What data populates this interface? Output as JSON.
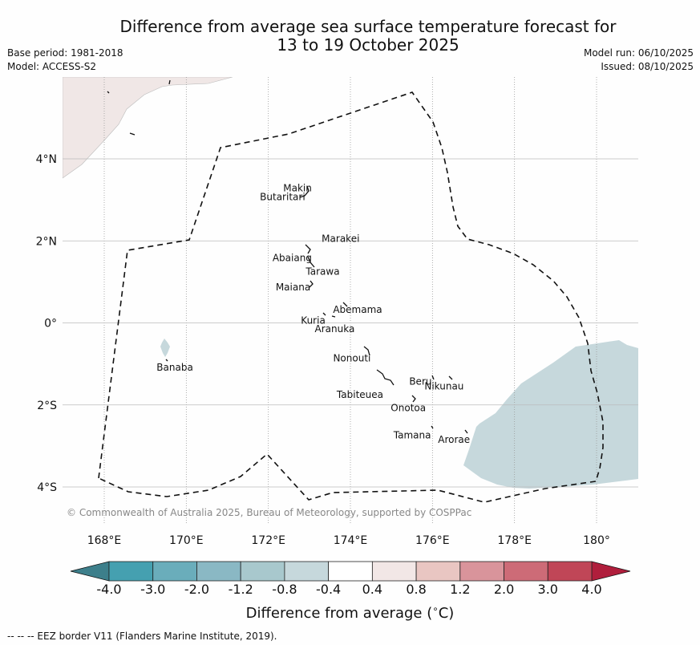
{
  "title": {
    "line1": "Difference from average sea surface temperature forecast for",
    "line2": "13 to 19 October 2025"
  },
  "meta_left": {
    "base_period": "Base period: 1981-2018",
    "model": "Model: ACCESS-S2"
  },
  "meta_right": {
    "model_run": "Model run: 06/10/2025",
    "issued": "Issued: 08/10/2025"
  },
  "map": {
    "lon_range": [
      167,
      181
    ],
    "lat_range": [
      -5,
      6
    ],
    "lon_ticks": [
      {
        "value": 168,
        "label": "168°E"
      },
      {
        "value": 170,
        "label": "170°E"
      },
      {
        "value": 172,
        "label": "172°E"
      },
      {
        "value": 174,
        "label": "174°E"
      },
      {
        "value": 176,
        "label": "176°E"
      },
      {
        "value": 178,
        "label": "178°E"
      },
      {
        "value": 180,
        "label": "180°"
      }
    ],
    "lat_ticks": [
      {
        "value": 4,
        "label": "4°N"
      },
      {
        "value": 2,
        "label": "2°N"
      },
      {
        "value": 0,
        "label": "0°"
      },
      {
        "value": -2,
        "label": "2°S"
      },
      {
        "value": -4,
        "label": "4°S"
      }
    ],
    "islands": [
      {
        "name": "Makin",
        "lon": 172.95,
        "lat": 3.25
      },
      {
        "name": "Butaritari",
        "lon": 172.85,
        "lat": 3.05
      },
      {
        "name": "Marakei",
        "lon": 173.3,
        "lat": 2.0
      },
      {
        "name": "Abaiang",
        "lon": 173.0,
        "lat": 1.8
      },
      {
        "name": "Tarawa",
        "lon": 173.05,
        "lat": 1.35
      },
      {
        "name": "Maiana",
        "lon": 173.0,
        "lat": 0.95
      },
      {
        "name": "Abemama",
        "lon": 173.85,
        "lat": 0.4
      },
      {
        "name": "Kuria",
        "lon": 173.4,
        "lat": 0.22
      },
      {
        "name": "Aranuka",
        "lon": 173.6,
        "lat": 0.17
      },
      {
        "name": "Nonouti",
        "lon": 174.4,
        "lat": -0.65
      },
      {
        "name": "Banaba",
        "lon": 169.55,
        "lat": -0.85
      },
      {
        "name": "Tabiteuea",
        "lon": 174.8,
        "lat": -1.4
      },
      {
        "name": "Beru",
        "lon": 176.0,
        "lat": -1.35
      },
      {
        "name": "Nikunau",
        "lon": 176.45,
        "lat": -1.35
      },
      {
        "name": "Onotoa",
        "lon": 175.55,
        "lat": -1.8
      },
      {
        "name": "Tamana",
        "lon": 175.95,
        "lat": -2.5
      },
      {
        "name": "Arorae",
        "lon": 176.8,
        "lat": -2.65
      }
    ],
    "copyright": "© Commonwealth of Australia 2025, Bureau of Meteorology, supported by COSPPac"
  },
  "colorbar": {
    "ticks": [
      "-4.0",
      "-3.0",
      "-2.0",
      "-1.2",
      "-0.8",
      "-0.4",
      "0.4",
      "0.8",
      "1.2",
      "2.0",
      "3.0",
      "4.0"
    ],
    "under_color": "#3d7f8b",
    "over_color": "#b01e3c",
    "bin_colors": [
      "#45a0b0",
      "#6aadbb",
      "#8ab8c4",
      "#a8c8cd",
      "#c6d8dc",
      "#ffffff",
      "#f2e7e6",
      "#e9c6c2",
      "#d9949b",
      "#cd6b77",
      "#c04657"
    ],
    "label": "Difference from average (",
    "label_unit": "C)"
  },
  "legend": {
    "eez": "--  --  -- EEZ border V11 (Flanders Marine Institute, 2019)."
  },
  "fills": {
    "land_warm": "#f0e7e6",
    "cool_anomaly": "#c6d8dc"
  }
}
